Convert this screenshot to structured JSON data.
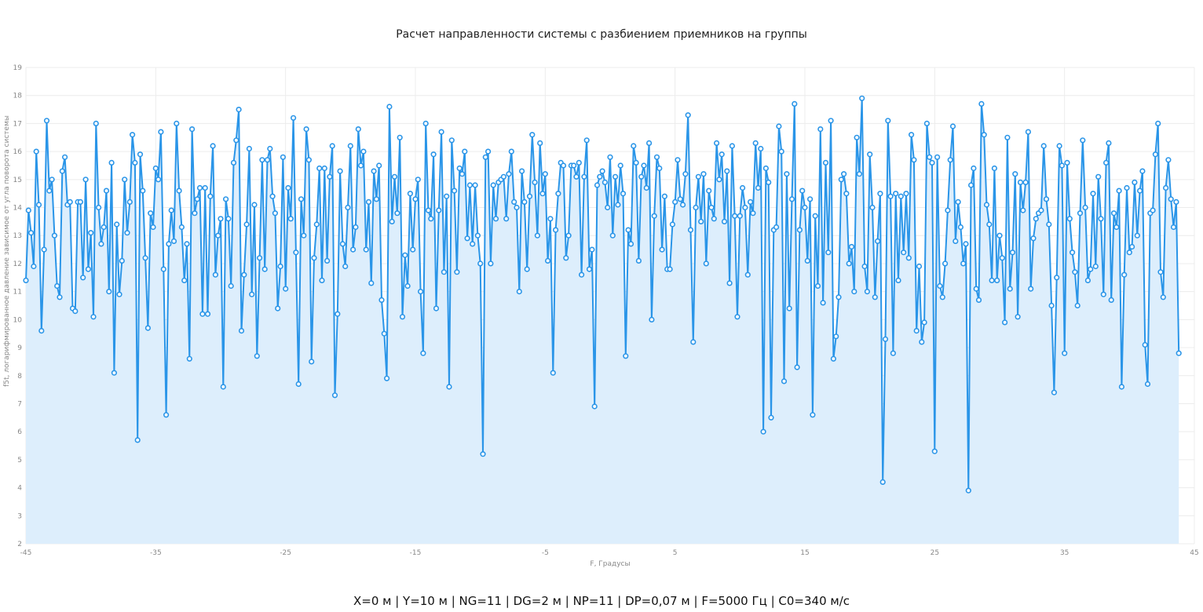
{
  "chart_data": {
    "type": "line",
    "title": "Расчет направленности системы с разбиением приемников на группы",
    "xlabel": "F, Градусы",
    "ylabel": "f5t, логарифмированное давление зависимое от угла поворота системы",
    "xlim": [
      -45,
      45
    ],
    "ylim": [
      2,
      19
    ],
    "xticks": [
      -45,
      -35,
      -25,
      -15,
      -5,
      5,
      15,
      25,
      35,
      45
    ],
    "yticks": [
      2,
      3,
      4,
      5,
      6,
      7,
      8,
      9,
      10,
      11,
      12,
      13,
      14,
      15,
      16,
      17,
      18,
      19
    ],
    "grid": true,
    "area_fill": true,
    "series": [
      {
        "color": "#2a95e8",
        "fill": "#ddeefc",
        "x_start": -45,
        "x_step": 0.2,
        "values": [
          11.4,
          13.9,
          13.1,
          11.9,
          16.0,
          14.1,
          9.6,
          12.5,
          17.1,
          14.6,
          15.0,
          13.0,
          11.2,
          10.8,
          15.3,
          15.8,
          14.1,
          14.2,
          10.4,
          10.3,
          14.2,
          14.2,
          11.5,
          15.0,
          11.8,
          13.1,
          10.1,
          17.0,
          14.0,
          12.7,
          13.3,
          14.6,
          11.0,
          15.6,
          8.1,
          13.4,
          10.9,
          12.1,
          15.0,
          13.1,
          14.2,
          16.6,
          15.6,
          5.7,
          15.9,
          14.6,
          12.2,
          9.7,
          13.8,
          13.3,
          15.4,
          15.0,
          16.7,
          11.8,
          6.6,
          12.7,
          13.9,
          12.8,
          17.0,
          14.6,
          13.3,
          11.4,
          12.7,
          8.6,
          16.8,
          13.8,
          14.3,
          14.7,
          10.2,
          14.7,
          10.2,
          14.4,
          16.2,
          11.6,
          13.0,
          13.6,
          7.6,
          14.3,
          13.6,
          11.2,
          15.6,
          16.4,
          17.5,
          9.6,
          11.6,
          13.4,
          16.1,
          10.9,
          14.1,
          8.7,
          12.2,
          15.7,
          11.8,
          15.7,
          16.1,
          14.4,
          13.8,
          10.4,
          11.9,
          15.8,
          11.1,
          14.7,
          13.6,
          17.2,
          12.4,
          7.7,
          14.3,
          13.0,
          16.8,
          15.7,
          8.5,
          12.2,
          13.4,
          15.4,
          11.4,
          15.4,
          12.1,
          15.1,
          16.2,
          7.3,
          10.2,
          15.3,
          12.7,
          11.9,
          14.0,
          16.2,
          12.5,
          13.3,
          16.8,
          15.5,
          16.0,
          12.5,
          14.2,
          11.3,
          15.3,
          14.3,
          15.5,
          10.7,
          9.5,
          7.9,
          17.6,
          13.5,
          15.1,
          13.8,
          16.5,
          10.1,
          12.3,
          11.2,
          14.5,
          12.5,
          14.3,
          15.0,
          11.0,
          8.8,
          17.0,
          13.9,
          13.6,
          15.9,
          10.4,
          13.9,
          16.7,
          11.7,
          14.4,
          7.6,
          16.4,
          14.6,
          11.7,
          15.4,
          15.2,
          16.0,
          12.9,
          14.8,
          12.7,
          14.8,
          13.0,
          12.0,
          5.2,
          15.8,
          16.0,
          12.0,
          14.8,
          13.6,
          14.9,
          15.0,
          15.1,
          13.6,
          15.2,
          16.0,
          14.2,
          14.0,
          11.0,
          15.3,
          14.2,
          11.8,
          14.4,
          16.6,
          14.9,
          13.0,
          16.3,
          14.5,
          15.2,
          12.1,
          13.6,
          8.1,
          13.2,
          14.5,
          15.6,
          15.5,
          12.2,
          13.0,
          15.5,
          15.5,
          15.1,
          15.6,
          11.6,
          15.1,
          16.4,
          11.8,
          12.5,
          6.9,
          14.8,
          15.1,
          15.3,
          14.9,
          14.0,
          15.8,
          13.0,
          15.1,
          14.1,
          15.5,
          14.5,
          8.7,
          13.2,
          12.7,
          16.2,
          15.6,
          12.1,
          15.1,
          15.5,
          14.7,
          16.3,
          10.0,
          13.7,
          15.8,
          15.4,
          12.5,
          14.4,
          11.8,
          11.8,
          13.4,
          14.2,
          15.7,
          14.3,
          14.1,
          15.2,
          17.3,
          13.2,
          9.2,
          14.0,
          15.1,
          13.5,
          15.2,
          12.0,
          14.6,
          14.0,
          13.6,
          16.3,
          15.0,
          15.9,
          13.5,
          15.3,
          11.3,
          16.2,
          13.7,
          10.1,
          13.7,
          14.7,
          14.0,
          11.6,
          14.2,
          13.8,
          16.3,
          14.7,
          16.1,
          6.0,
          15.4,
          14.9,
          6.5,
          13.2,
          13.3,
          16.9,
          16.0,
          7.8,
          15.2,
          10.4,
          14.3,
          17.7,
          8.3,
          13.2,
          14.6,
          14.0,
          12.1,
          14.3,
          6.6,
          13.7,
          11.2,
          16.8,
          10.6,
          15.6,
          12.4,
          17.1,
          8.6,
          9.4,
          10.8,
          15.0,
          15.2,
          14.5,
          12.0,
          12.6,
          11.0,
          16.5,
          15.2,
          17.9,
          11.9,
          11.0,
          15.9,
          14.0,
          10.8,
          12.8,
          14.5,
          4.2,
          9.3,
          17.1,
          14.4,
          8.8,
          14.5,
          11.4,
          14.4,
          12.4,
          14.5,
          12.2,
          16.6,
          15.7,
          9.6,
          11.9,
          9.2,
          9.9,
          17.0,
          15.8,
          15.6,
          5.3,
          15.8,
          11.2,
          10.8,
          12.0,
          13.9,
          15.7,
          16.9,
          12.8,
          14.2,
          13.3,
          12.0,
          12.7,
          3.9,
          14.8,
          15.4,
          11.1,
          10.7,
          17.7,
          16.6,
          14.1,
          13.4,
          11.4,
          15.4,
          11.4,
          13.0,
          12.2,
          9.9,
          16.5,
          11.1,
          12.4,
          15.2,
          10.1,
          14.9,
          13.9,
          14.9,
          16.7,
          11.1,
          12.9,
          13.6,
          13.8,
          13.9,
          16.2,
          14.3,
          13.4,
          10.5,
          7.4,
          11.5,
          16.2,
          15.5,
          8.8,
          15.6,
          13.6,
          12.4,
          11.7,
          10.5,
          13.8,
          16.4,
          14.0,
          11.4,
          11.8,
          14.5,
          11.9,
          15.1,
          13.6,
          10.9,
          15.6,
          16.3,
          10.7,
          13.8,
          13.3,
          14.6,
          7.6,
          11.6,
          14.7,
          12.4,
          12.6,
          14.9,
          13.0,
          14.6,
          15.3,
          9.1,
          7.7,
          13.8,
          13.9,
          15.9,
          17.0,
          11.7,
          10.8,
          14.7,
          15.7,
          14.3,
          13.3,
          14.2,
          8.8
        ]
      }
    ]
  },
  "footer": "X=0 м |  Y=10 м |  NG=11 | DG=2 м |  NP=11 |  DP=0,07 м |  F=5000 Гц |  C0=340 м/с"
}
